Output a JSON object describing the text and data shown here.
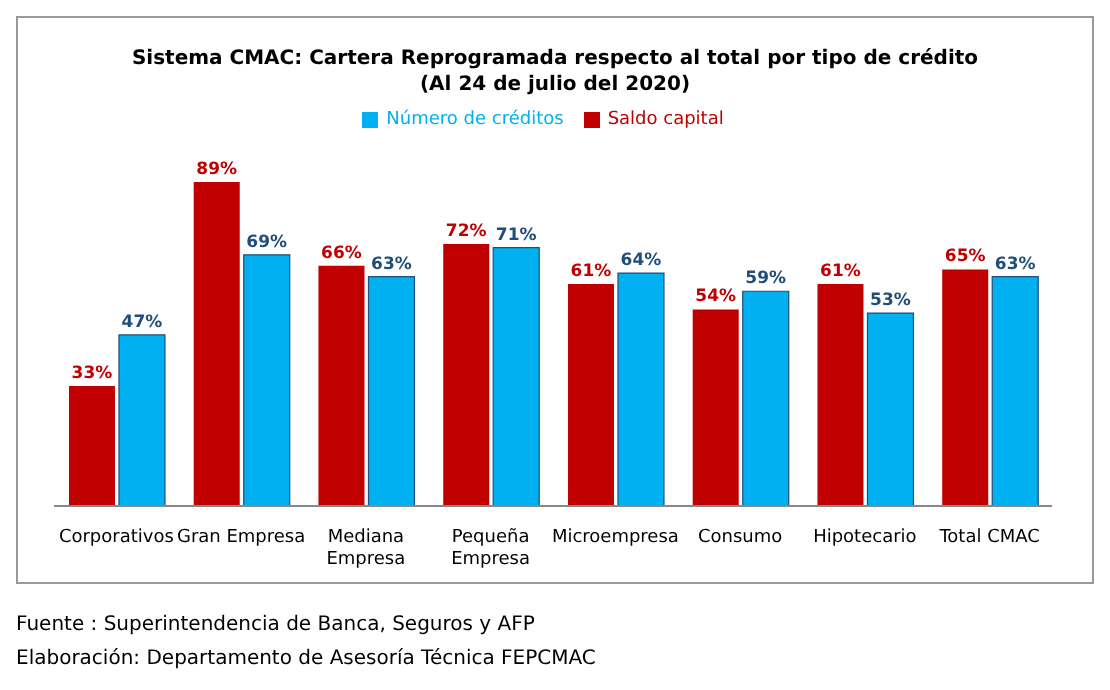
{
  "chart_data": {
    "type": "bar",
    "title": "Sistema CMAC: Cartera Reprogramada respecto al total por tipo de crédito",
    "subtitle": "(Al 24 de julio del 2020)",
    "categories": [
      "Corporativos",
      "Gran Empresa",
      "Mediana Empresa",
      "Pequeña Empresa",
      "Microempresa",
      "Consumo",
      "Hipotecario",
      "Total CMAC"
    ],
    "series": [
      {
        "name": "Saldo capital",
        "color": "#c00000",
        "values": [
          33,
          89,
          66,
          72,
          61,
          54,
          61,
          65
        ],
        "value_labels": [
          "33%",
          "89%",
          "66%",
          "72%",
          "61%",
          "54%",
          "61%",
          "65%"
        ]
      },
      {
        "name": "Número de créditos",
        "color": "#00b0f0",
        "values": [
          47,
          69,
          63,
          71,
          64,
          59,
          53,
          63
        ],
        "value_labels": [
          "47%",
          "69%",
          "63%",
          "71%",
          "64%",
          "59%",
          "53%",
          "63%"
        ]
      }
    ],
    "legend": "top",
    "grid": false,
    "annotations": [
      "Fuente : Superintendencia de Banca, Seguros y AFP",
      "Elaboración: Departamento de Asesoría Técnica FEPCMAC"
    ]
  }
}
